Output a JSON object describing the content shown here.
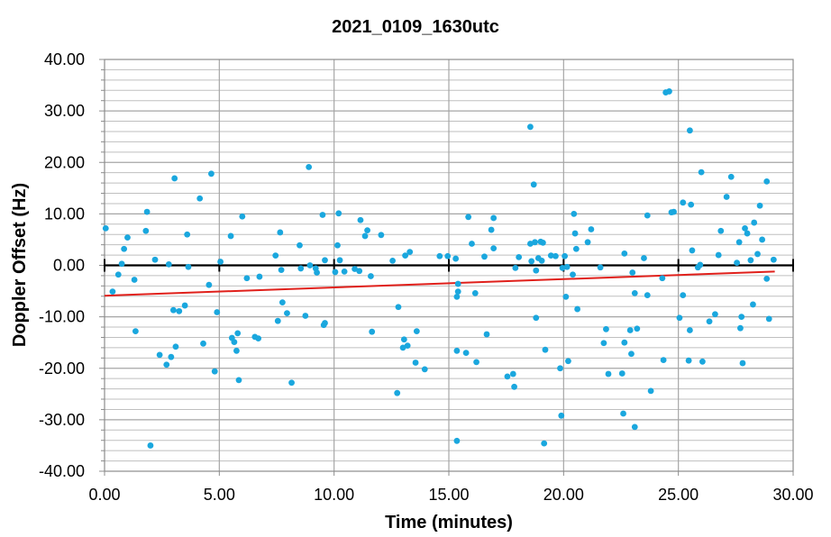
{
  "chart_data": {
    "type": "scatter",
    "title": "2021_0109_1630utc",
    "xlabel": "Time (minutes)",
    "ylabel": "Doppler Offset (Hz)",
    "xlim": [
      0,
      30
    ],
    "ylim": [
      -40,
      40
    ],
    "x_ticks": [
      "0.00",
      "5.00",
      "10.00",
      "15.00",
      "20.00",
      "25.00",
      "30.00"
    ],
    "y_ticks": [
      "40.00",
      "30.00",
      "20.00",
      "10.00",
      "0.00",
      "-10.00",
      "-20.00",
      "-30.00",
      "-40.00"
    ],
    "grid": true,
    "legend": "none",
    "colors": {
      "points": "#1aa7de",
      "trend": "#e0201b",
      "zero_line": "#000000",
      "grid": "#a6a6a6"
    },
    "trend_line": {
      "x": [
        0,
        29.2
      ],
      "y": [
        -5.9,
        -1.2
      ]
    },
    "series": [
      {
        "points": [
          [
            0.05,
            7.2
          ],
          [
            0.35,
            -5.1
          ],
          [
            0.6,
            -1.8
          ],
          [
            0.75,
            0.3
          ],
          [
            0.85,
            3.2
          ],
          [
            1.0,
            5.4
          ],
          [
            1.3,
            -2.8
          ],
          [
            1.35,
            -12.8
          ],
          [
            1.8,
            6.7
          ],
          [
            1.85,
            10.4
          ],
          [
            2.0,
            -35.0
          ],
          [
            2.2,
            1.1
          ],
          [
            2.4,
            -17.4
          ],
          [
            2.7,
            -19.3
          ],
          [
            2.8,
            0.2
          ],
          [
            2.9,
            -17.8
          ],
          [
            3.0,
            -8.7
          ],
          [
            3.05,
            16.9
          ],
          [
            3.1,
            -15.8
          ],
          [
            3.25,
            -8.9
          ],
          [
            3.5,
            -7.8
          ],
          [
            3.6,
            6.0
          ],
          [
            3.65,
            -0.3
          ],
          [
            4.15,
            13.0
          ],
          [
            4.3,
            -15.2
          ],
          [
            4.55,
            -3.8
          ],
          [
            4.65,
            17.8
          ],
          [
            4.8,
            -20.6
          ],
          [
            4.9,
            -9.1
          ],
          [
            5.05,
            0.7
          ],
          [
            5.5,
            5.7
          ],
          [
            5.55,
            -14.1
          ],
          [
            5.65,
            -14.9
          ],
          [
            5.75,
            -16.6
          ],
          [
            5.8,
            -13.2
          ],
          [
            5.85,
            -22.3
          ],
          [
            6.0,
            9.5
          ],
          [
            6.2,
            -2.5
          ],
          [
            6.55,
            -13.9
          ],
          [
            6.7,
            -14.2
          ],
          [
            6.75,
            -2.2
          ],
          [
            7.45,
            1.9
          ],
          [
            7.55,
            -10.8
          ],
          [
            7.65,
            6.4
          ],
          [
            7.7,
            -0.9
          ],
          [
            7.75,
            -7.2
          ],
          [
            7.95,
            -9.3
          ],
          [
            8.15,
            -22.8
          ],
          [
            8.5,
            3.9
          ],
          [
            8.55,
            -0.6
          ],
          [
            8.75,
            -9.8
          ],
          [
            8.9,
            19.1
          ],
          [
            8.95,
            0.0
          ],
          [
            9.2,
            -0.6
          ],
          [
            9.25,
            -1.4
          ],
          [
            9.5,
            9.8
          ],
          [
            9.55,
            -11.6
          ],
          [
            9.6,
            -11.2
          ],
          [
            9.6,
            1.0
          ],
          [
            10.05,
            -1.3
          ],
          [
            10.15,
            3.9
          ],
          [
            10.2,
            10.1
          ],
          [
            10.25,
            1.0
          ],
          [
            10.45,
            -1.2
          ],
          [
            10.9,
            -0.7
          ],
          [
            11.1,
            -1.1
          ],
          [
            11.15,
            8.8
          ],
          [
            11.35,
            5.7
          ],
          [
            11.45,
            6.8
          ],
          [
            11.6,
            -2.1
          ],
          [
            11.65,
            -12.9
          ],
          [
            12.05,
            5.9
          ],
          [
            12.55,
            0.9
          ],
          [
            12.75,
            -24.8
          ],
          [
            12.8,
            -8.1
          ],
          [
            13.0,
            -16.0
          ],
          [
            13.05,
            -14.4
          ],
          [
            13.1,
            1.9
          ],
          [
            13.2,
            -15.6
          ],
          [
            13.3,
            2.6
          ],
          [
            13.55,
            -18.9
          ],
          [
            13.6,
            -12.8
          ],
          [
            13.95,
            -20.2
          ],
          [
            14.6,
            1.8
          ],
          [
            14.95,
            1.8
          ],
          [
            15.3,
            1.3
          ],
          [
            15.35,
            -6.1
          ],
          [
            15.4,
            -3.6
          ],
          [
            15.35,
            -16.6
          ],
          [
            15.35,
            -34.1
          ],
          [
            15.4,
            -5.1
          ],
          [
            15.75,
            -17.0
          ],
          [
            15.85,
            9.4
          ],
          [
            16.0,
            4.2
          ],
          [
            16.15,
            -5.4
          ],
          [
            16.2,
            -18.8
          ],
          [
            16.55,
            1.7
          ],
          [
            16.65,
            -13.4
          ],
          [
            16.85,
            6.9
          ],
          [
            16.95,
            9.2
          ],
          [
            16.95,
            3.3
          ],
          [
            17.55,
            -21.6
          ],
          [
            17.8,
            -21.1
          ],
          [
            17.85,
            -23.6
          ],
          [
            17.9,
            -0.5
          ],
          [
            18.05,
            1.6
          ],
          [
            18.55,
            26.9
          ],
          [
            18.55,
            4.2
          ],
          [
            18.6,
            0.8
          ],
          [
            18.7,
            15.7
          ],
          [
            18.75,
            4.5
          ],
          [
            18.8,
            -10.2
          ],
          [
            18.8,
            -1.0
          ],
          [
            18.9,
            1.4
          ],
          [
            19.0,
            4.6
          ],
          [
            19.05,
            0.9
          ],
          [
            19.1,
            4.4
          ],
          [
            19.15,
            -34.6
          ],
          [
            19.2,
            -16.4
          ],
          [
            19.45,
            1.9
          ],
          [
            19.65,
            1.8
          ],
          [
            19.85,
            -20.0
          ],
          [
            19.9,
            -29.2
          ],
          [
            19.95,
            -0.5
          ],
          [
            20.05,
            1.8
          ],
          [
            20.1,
            -6.1
          ],
          [
            20.15,
            -0.3
          ],
          [
            20.2,
            -18.6
          ],
          [
            20.4,
            -1.8
          ],
          [
            20.45,
            10.0
          ],
          [
            20.5,
            6.2
          ],
          [
            20.55,
            3.2
          ],
          [
            20.6,
            -8.5
          ],
          [
            21.05,
            4.5
          ],
          [
            21.2,
            7.0
          ],
          [
            21.6,
            -0.4
          ],
          [
            21.75,
            -15.1
          ],
          [
            21.85,
            -12.4
          ],
          [
            21.95,
            -21.1
          ],
          [
            22.55,
            -21.0
          ],
          [
            22.6,
            -28.8
          ],
          [
            22.65,
            -15.0
          ],
          [
            22.65,
            2.3
          ],
          [
            22.9,
            -12.6
          ],
          [
            22.95,
            -17.2
          ],
          [
            23.0,
            -1.4
          ],
          [
            23.1,
            -31.4
          ],
          [
            23.1,
            -5.4
          ],
          [
            23.2,
            -12.3
          ],
          [
            23.5,
            1.4
          ],
          [
            23.65,
            -5.8
          ],
          [
            23.65,
            9.7
          ],
          [
            23.8,
            -24.4
          ],
          [
            24.3,
            -2.5
          ],
          [
            24.35,
            -18.4
          ],
          [
            24.45,
            33.6
          ],
          [
            24.6,
            33.8
          ],
          [
            24.7,
            10.3
          ],
          [
            24.8,
            10.4
          ],
          [
            25.05,
            -10.2
          ],
          [
            25.2,
            12.2
          ],
          [
            25.2,
            -5.8
          ],
          [
            25.45,
            -18.5
          ],
          [
            25.5,
            -12.6
          ],
          [
            25.5,
            26.2
          ],
          [
            25.55,
            11.8
          ],
          [
            25.6,
            2.9
          ],
          [
            25.85,
            -0.4
          ],
          [
            25.95,
            0.1
          ],
          [
            26.0,
            18.1
          ],
          [
            26.05,
            -18.7
          ],
          [
            26.35,
            -10.9
          ],
          [
            26.6,
            -9.5
          ],
          [
            26.75,
            2.0
          ],
          [
            26.85,
            6.7
          ],
          [
            27.1,
            13.3
          ],
          [
            27.3,
            17.2
          ],
          [
            27.65,
            4.5
          ],
          [
            27.7,
            -12.2
          ],
          [
            27.75,
            -10.0
          ],
          [
            27.8,
            -19.0
          ],
          [
            27.9,
            7.2
          ],
          [
            28.0,
            6.2
          ],
          [
            28.15,
            1.0
          ],
          [
            28.25,
            -7.6
          ],
          [
            28.3,
            8.3
          ],
          [
            28.45,
            2.2
          ],
          [
            28.55,
            11.6
          ],
          [
            28.65,
            5.0
          ],
          [
            28.85,
            16.3
          ],
          [
            28.85,
            -2.6
          ],
          [
            28.95,
            -10.4
          ],
          [
            29.15,
            1.1
          ],
          [
            27.55,
            0.5
          ]
        ]
      }
    ]
  }
}
